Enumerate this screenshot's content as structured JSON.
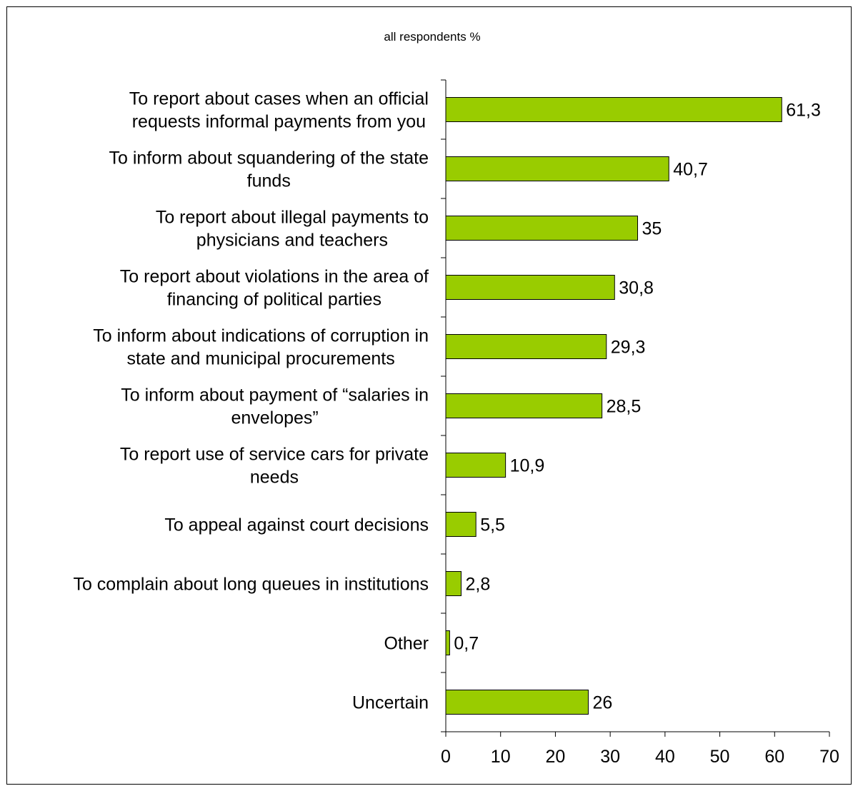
{
  "chart_data": {
    "type": "bar",
    "orientation": "horizontal",
    "title": "all respondents %",
    "categories": [
      [
        "To report about cases when an official",
        "requests informal payments from you"
      ],
      [
        "To inform about squandering of the state",
        "funds"
      ],
      [
        "To report about illegal payments to",
        "physicians and teachers"
      ],
      [
        "To report about violations in the area of",
        "financing of political parties"
      ],
      [
        "To inform about indications of corruption in",
        "state and municipal procurements"
      ],
      [
        "To inform about payment of “salaries in",
        "envelopes”"
      ],
      [
        "To report use of service cars for private",
        "needs"
      ],
      [
        "To appeal against court decisions"
      ],
      [
        "To complain about long queues in institutions"
      ],
      [
        "Other"
      ],
      [
        "Uncertain"
      ]
    ],
    "values": [
      61.3,
      40.7,
      35,
      30.8,
      29.3,
      28.5,
      10.9,
      5.5,
      2.8,
      0.7,
      26
    ],
    "value_labels": [
      "61,3",
      "40,7",
      "35",
      "30,8",
      "29,3",
      "28,5",
      "10,9",
      "5,5",
      "2,8",
      "0,7",
      "26"
    ],
    "xlim": [
      0,
      70
    ],
    "xticks": [
      0,
      10,
      20,
      30,
      40,
      50,
      60,
      70
    ],
    "grid": false,
    "legend": "none",
    "bar_color": "#99cc00",
    "bar_edge_color": "#000000"
  }
}
